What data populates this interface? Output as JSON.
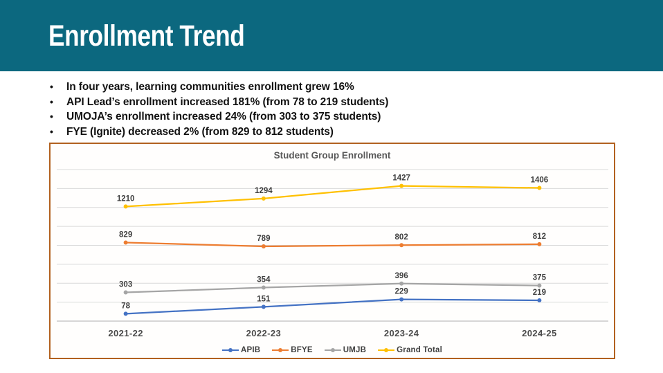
{
  "slide": {
    "title": "Enrollment Trend",
    "bullet_glyph": "•",
    "bullets": [
      "In four years, learning communities enrollment grew 16%",
      "API Lead’s enrollment increased 181% (from 78 to 219 students)",
      "UMOJA’s enrollment increased 24% (from 303 to 375 students)",
      "FYE (Ignite) decreased 2% (from 829 to 812 students)"
    ]
  },
  "colors": {
    "header_bg": "#0c687f",
    "title_text": "#ffffff",
    "body_text": "#111111",
    "chart_border": "#b2611f",
    "chart_bg": "#fffefd",
    "chart_title": "#595959",
    "gridline": "#d9d9d9",
    "axis_line": "#bfbfbf",
    "data_label": "#3f3f3f",
    "category_label": "#4a4a4a",
    "legend_label": "#404040"
  },
  "chart_data": {
    "type": "line",
    "title": "Student Group Enrollment",
    "categories": [
      "2021-22",
      "2022-23",
      "2023-24",
      "2024-25"
    ],
    "series": [
      {
        "name": "APIB",
        "color": "#4472c4",
        "values": [
          78,
          151,
          229,
          219
        ]
      },
      {
        "name": "BFYE",
        "color": "#ed7d31",
        "values": [
          829,
          789,
          802,
          812
        ]
      },
      {
        "name": "UMJB",
        "color": "#a5a5a5",
        "values": [
          303,
          354,
          396,
          375
        ]
      },
      {
        "name": "Grand Total",
        "color": "#ffc000",
        "values": [
          1210,
          1294,
          1427,
          1406
        ]
      }
    ],
    "ylim": [
      0,
      1600
    ],
    "grid_interval": 200,
    "grid": true,
    "y_axis_labels": false,
    "data_labels": true,
    "markers": true,
    "legend_position": "bottom"
  }
}
